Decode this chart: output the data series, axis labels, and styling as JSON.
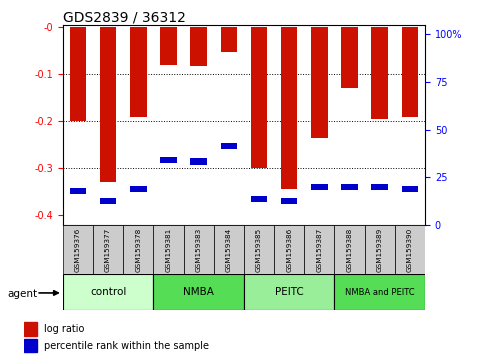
{
  "title": "GDS2839 / 36312",
  "samples": [
    "GSM159376",
    "GSM159377",
    "GSM159378",
    "GSM159381",
    "GSM159383",
    "GSM159384",
    "GSM159385",
    "GSM159386",
    "GSM159387",
    "GSM159388",
    "GSM159389",
    "GSM159390"
  ],
  "log_ratio": [
    -0.2,
    -0.33,
    -0.19,
    -0.08,
    -0.083,
    -0.052,
    -0.3,
    -0.345,
    -0.235,
    -0.13,
    -0.195,
    -0.19
  ],
  "percentile_rank": [
    17,
    12,
    18,
    33,
    32,
    40,
    13,
    12,
    19,
    19,
    19,
    18
  ],
  "groups": [
    {
      "label": "control",
      "start": 0,
      "end": 3,
      "color": "#ccffcc"
    },
    {
      "label": "NMBA",
      "start": 3,
      "end": 6,
      "color": "#55dd55"
    },
    {
      "label": "PEITC",
      "start": 6,
      "end": 9,
      "color": "#99ee99"
    },
    {
      "label": "NMBA and PEITC",
      "start": 9,
      "end": 12,
      "color": "#55dd55"
    }
  ],
  "bar_color": "#cc1100",
  "blue_color": "#0000cc",
  "ylim_left": [
    -0.42,
    0.005
  ],
  "ylim_right": [
    0,
    105
  ],
  "yticks_left": [
    0.0,
    -0.1,
    -0.2,
    -0.3,
    -0.4
  ],
  "yticks_right": [
    0,
    25,
    50,
    75,
    100
  ],
  "bar_width": 0.55,
  "bg_color": "#ffffff",
  "tick_bg": "#cccccc",
  "title_fontsize": 10,
  "axis_fontsize": 7,
  "legend_fontsize": 7
}
